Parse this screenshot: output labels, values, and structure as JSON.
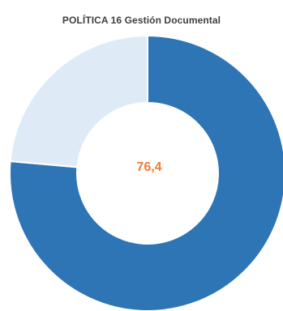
{
  "chart_data": {
    "type": "pie",
    "title": "POLÍTICA 16 Gestión Documental",
    "center_label": "76,4",
    "slices": [
      {
        "value": 76.4,
        "color": "#2e75b6"
      },
      {
        "value": 23.6,
        "color": "#deebf7"
      }
    ],
    "colors": {
      "center_label": "#ed7d31"
    }
  }
}
